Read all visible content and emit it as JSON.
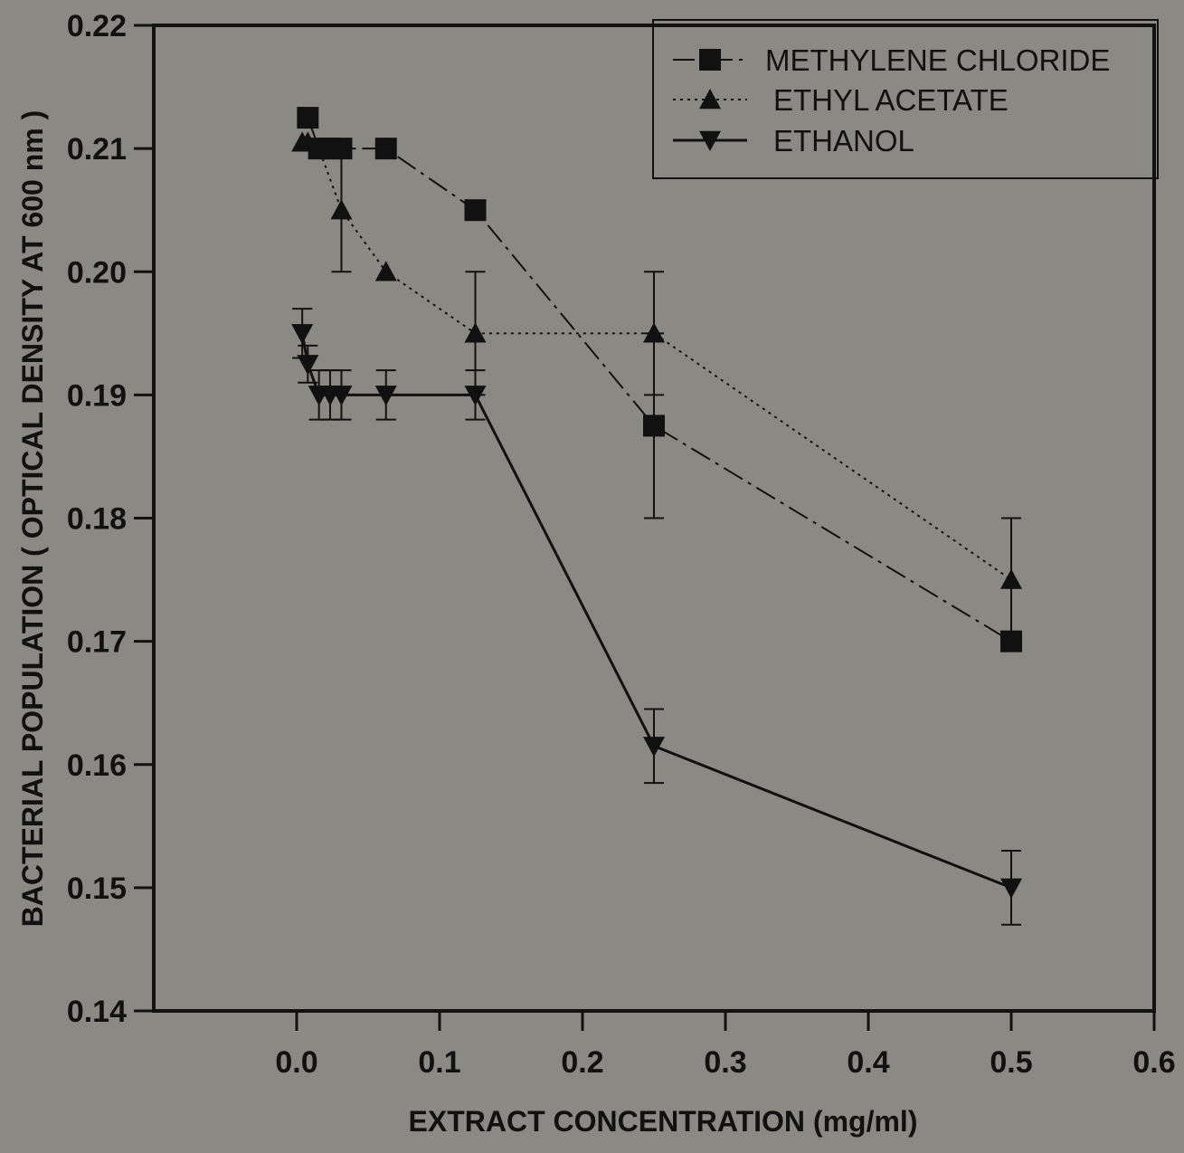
{
  "chart_data": {
    "type": "line",
    "title": "",
    "xlabel": "EXTRACT CONCENTRATION (mg/ml)",
    "ylabel": "BACTERIAL POPULATION ( OPTICAL DENSITY AT 600 nm )",
    "xlim": [
      -0.1,
      0.6
    ],
    "ylim": [
      0.14,
      0.22
    ],
    "x_ticks": [
      "0.0",
      "0.1",
      "0.2",
      "0.3",
      "0.4",
      "0.5",
      "0.6"
    ],
    "y_ticks": [
      "0.14",
      "0.15",
      "0.16",
      "0.17",
      "0.18",
      "0.19",
      "0.20",
      "0.21",
      "0.22"
    ],
    "x_tick_values": [
      0.0,
      0.1,
      0.2,
      0.3,
      0.4,
      0.5,
      0.6
    ],
    "y_tick_values": [
      0.14,
      0.15,
      0.16,
      0.17,
      0.18,
      0.19,
      0.2,
      0.21,
      0.22
    ],
    "grid": false,
    "legend_position": "top-right",
    "series": [
      {
        "name": "METHYLENE CHLORIDE",
        "marker": "square",
        "line_style": "dash-dot",
        "x": [
          0.0078,
          0.0156,
          0.0234,
          0.0313,
          0.0625,
          0.125,
          0.25,
          0.5
        ],
        "y": [
          0.2125,
          0.21,
          0.21,
          0.21,
          0.21,
          0.205,
          0.1875,
          0.17
        ],
        "err": [
          0,
          0,
          0,
          0,
          0,
          0,
          0.0075,
          0
        ]
      },
      {
        "name": "ETHYL ACETATE",
        "marker": "triangle-up",
        "line_style": "dotted",
        "x": [
          0.0039,
          0.0078,
          0.0156,
          0.0313,
          0.0625,
          0.125,
          0.25,
          0.5
        ],
        "y": [
          0.2105,
          0.2105,
          0.21,
          0.205,
          0.2,
          0.195,
          0.195,
          0.175
        ],
        "err": [
          0,
          0,
          0,
          0.005,
          0,
          0.005,
          0.005,
          0.005
        ]
      },
      {
        "name": "ETHANOL",
        "marker": "triangle-down",
        "line_style": "solid",
        "x": [
          0.0039,
          0.0078,
          0.0156,
          0.0234,
          0.0313,
          0.0625,
          0.125,
          0.25,
          0.5
        ],
        "y": [
          0.195,
          0.1925,
          0.19,
          0.19,
          0.19,
          0.19,
          0.19,
          0.1615,
          0.15
        ],
        "err": [
          0.002,
          0.0015,
          0.002,
          0.002,
          0.002,
          0.002,
          0.002,
          0.003,
          0.003
        ]
      }
    ],
    "colors": {
      "background": "#8b8983",
      "ink": "#111111"
    }
  }
}
